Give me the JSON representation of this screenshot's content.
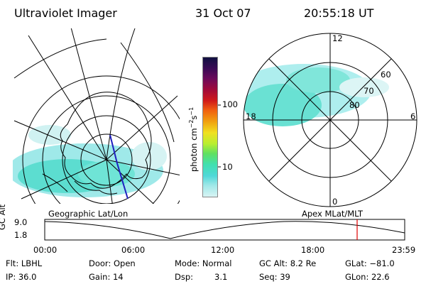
{
  "header": {
    "instrument": "Ultraviolet Imager",
    "date": "31 Oct 07",
    "time": "20:55:18 UT"
  },
  "colorbar": {
    "unit_main": "photon cm",
    "unit_exp1": "−2",
    "unit_mid": "s",
    "unit_exp2": "−1",
    "ticks": [
      "100",
      "10"
    ],
    "colors": [
      "#101040",
      "#3a0a55",
      "#6a0a5a",
      "#a00a3a",
      "#d01a1a",
      "#f06010",
      "#f0a010",
      "#f0e020",
      "#b8ee30",
      "#60e060",
      "#40e0b0",
      "#50d8d8",
      "#a0e8e8",
      "#d8f4f4"
    ]
  },
  "left_map": {
    "caption": "Geographic Lat/Lon"
  },
  "right_dial": {
    "caption": "Apex MLat/MLT",
    "hour_labels": {
      "top": "12",
      "left": "18",
      "right": "6",
      "bottom": "0"
    },
    "lat_labels": [
      "60",
      "70",
      "80"
    ]
  },
  "altitude_plot": {
    "axis_label": "GC Alt",
    "ytick_top": "9.0",
    "ytick_bottom": "1.8",
    "xticks": [
      "00:00",
      "06:00",
      "12:00",
      "18:00",
      "23:59"
    ],
    "marker_color": "#e00000"
  },
  "status": {
    "flt": "Flt: LBHL",
    "ip": "IP: 36.0",
    "door": "Door: Open",
    "gain": "Gain: 14",
    "mode": "Mode: Normal",
    "dsp_label": "Dsp:",
    "dsp_value": "3.1",
    "gcalt": "GC Alt: 8.2 Re",
    "seq": "Seq: 39",
    "glat": "GLat: −81.0",
    "glon": "GLon:  22.6"
  }
}
